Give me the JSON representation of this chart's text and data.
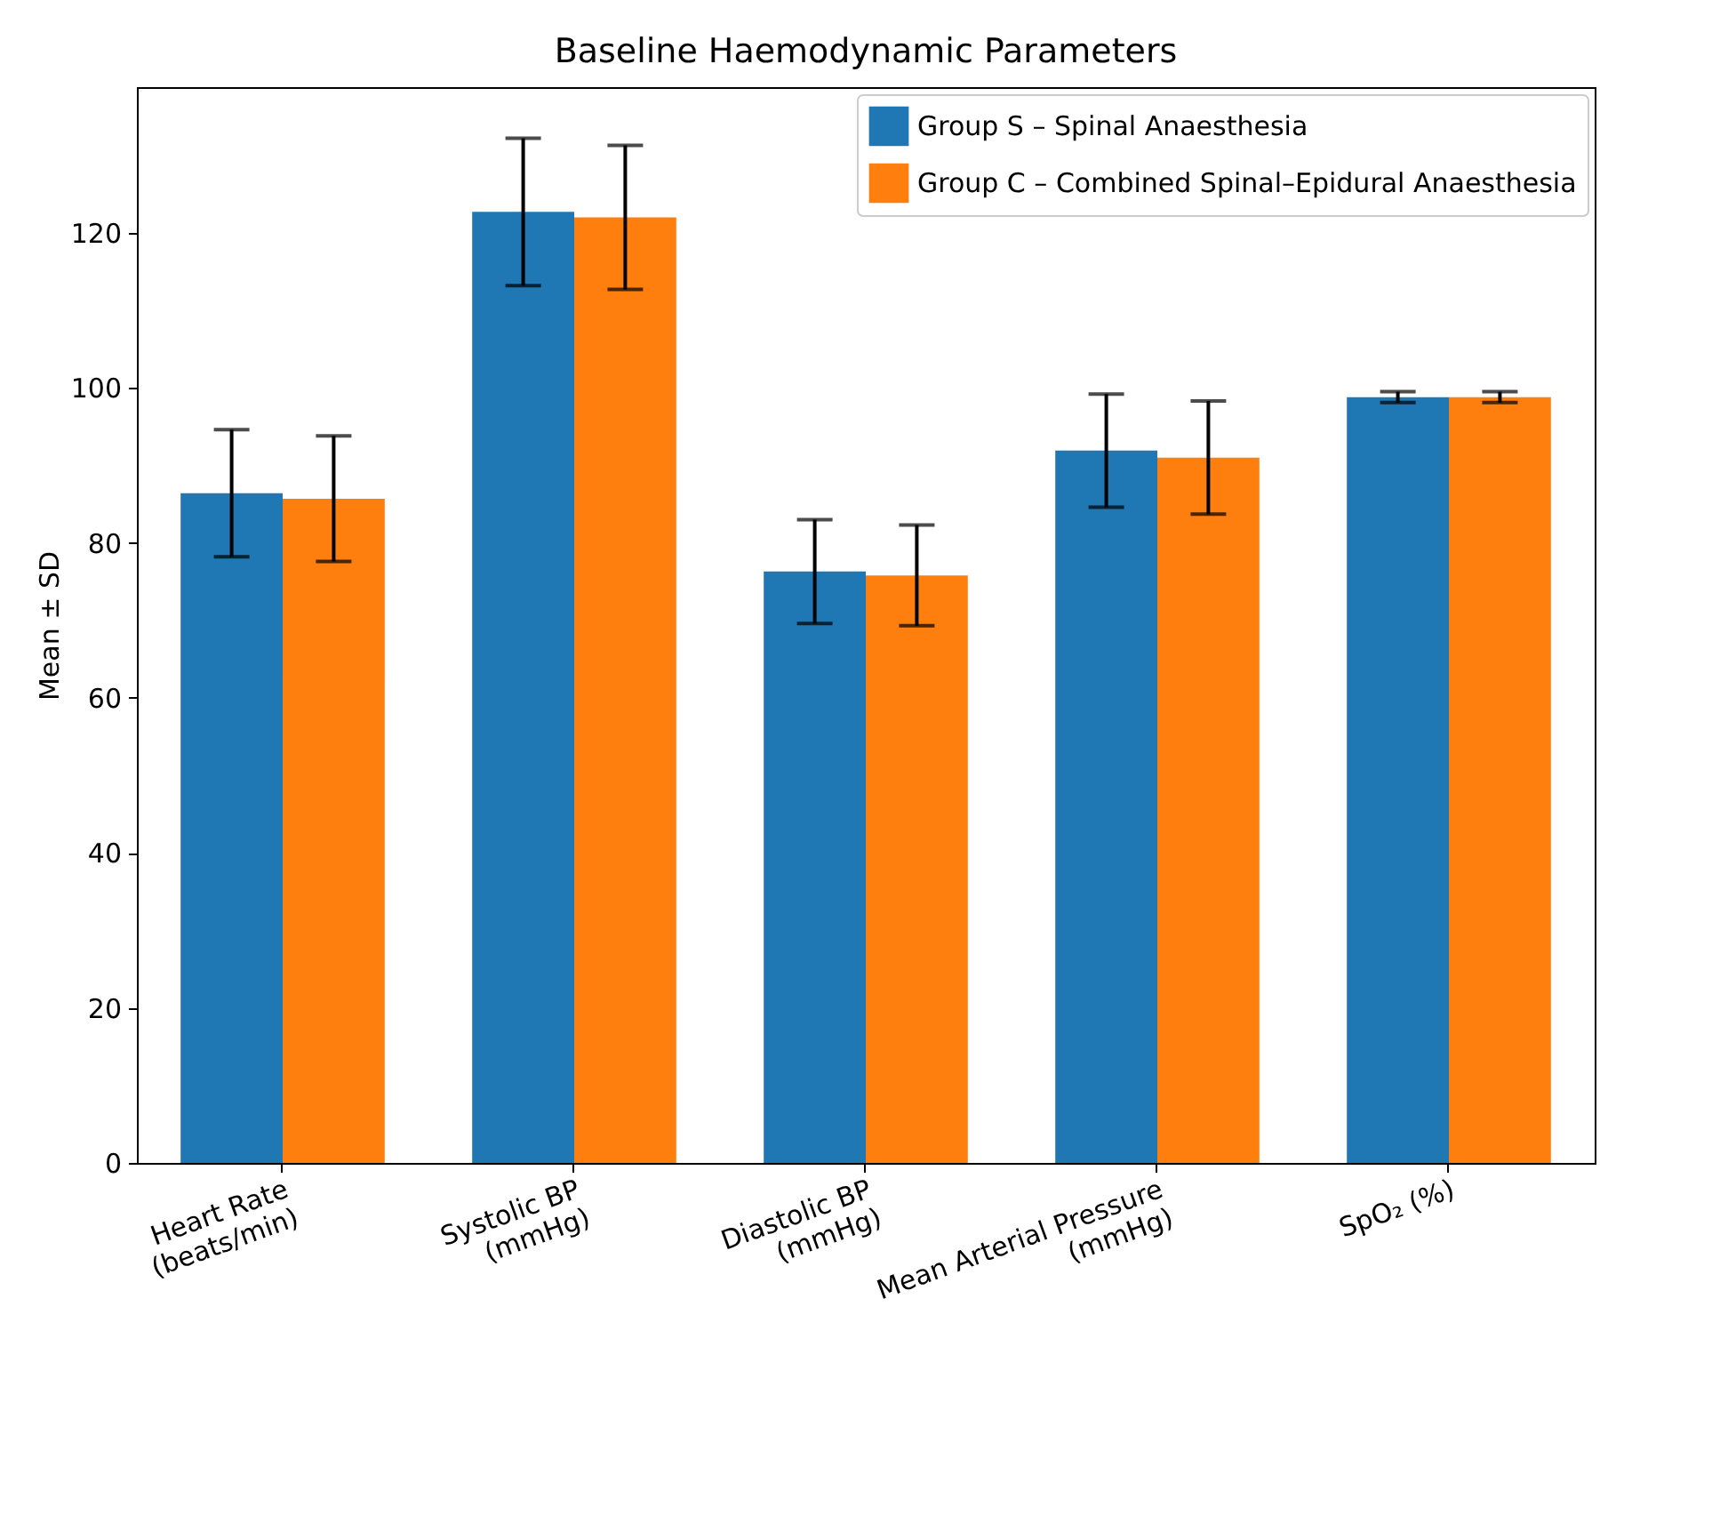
{
  "chart_data": {
    "type": "bar",
    "title": "Baseline Haemodynamic Parameters",
    "ylabel": "Mean ± SD",
    "categories": [
      "Heart Rate\n(beats/min)",
      "Systolic BP\n(mmHg)",
      "Diastolic BP\n(mmHg)",
      "Mean Arterial Pressure\n(mmHg)",
      "SpO₂ (%)"
    ],
    "series": [
      {
        "name": "Group S – Spinal Anaesthesia",
        "color": "#1f77b4",
        "values": [
          86.4,
          122.7,
          76.3,
          91.9,
          98.8
        ],
        "errors": [
          8.2,
          9.5,
          6.7,
          7.3,
          0.7
        ]
      },
      {
        "name": "Group C – Combined Spinal–Epidural Anaesthesia",
        "color": "#ff7f0e",
        "values": [
          85.7,
          122.0,
          75.8,
          91.0,
          98.8
        ],
        "errors": [
          8.1,
          9.3,
          6.5,
          7.3,
          0.7
        ]
      }
    ],
    "ylim": [
      0,
      138.8
    ],
    "yticks": [
      0,
      20,
      40,
      60,
      80,
      100,
      120
    ],
    "legend": "top right",
    "grid": false
  }
}
